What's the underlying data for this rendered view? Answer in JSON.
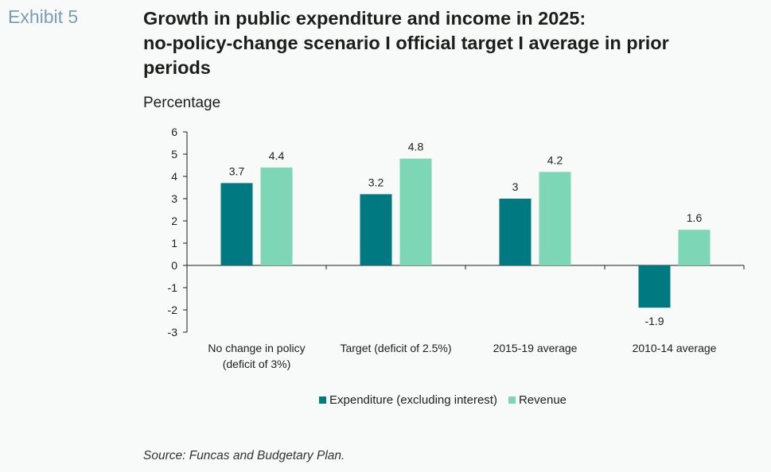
{
  "exhibit_label": "Exhibit 5",
  "title_lines": [
    "Growth in public expenditure and income in 2025:",
    "no-policy-change scenario I official target I average in prior",
    "periods"
  ],
  "subtitle": "Percentage",
  "source": "Source: Funcas and Budgetary Plan.",
  "colors": {
    "expenditure": "#007A80",
    "revenue": "#7DD6B6",
    "axis": "#1d1d1b"
  },
  "chart_data": {
    "type": "bar",
    "categories": [
      [
        "No change in policy",
        "(deficit of 3%)"
      ],
      [
        "Target (deficit of 2.5%)"
      ],
      [
        "2015-19 average"
      ],
      [
        "2010-14 average"
      ]
    ],
    "series": [
      {
        "name": "Expenditure (excluding interest)",
        "values": [
          3.7,
          3.2,
          3,
          -1.9
        ],
        "labels": [
          "3.7",
          "3.2",
          "3",
          "-1.9"
        ]
      },
      {
        "name": "Revenue",
        "values": [
          4.4,
          4.8,
          4.2,
          1.6
        ],
        "labels": [
          "4.4",
          "4.8",
          "4.2",
          "1.6"
        ]
      }
    ],
    "ylim": [
      -3,
      6
    ],
    "yticks": [
      "-3",
      "-2",
      "-1",
      "0",
      "1",
      "2",
      "3",
      "4",
      "5",
      "6"
    ],
    "grid": false,
    "legend_position": "bottom"
  }
}
